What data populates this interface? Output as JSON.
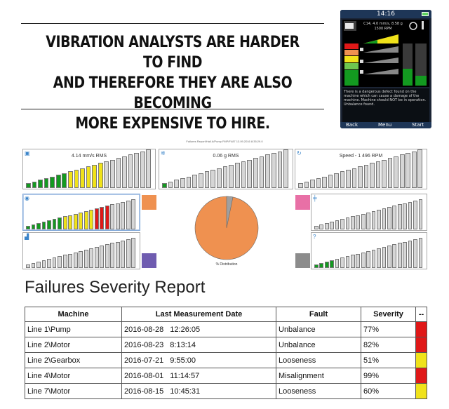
{
  "headline": {
    "lines": [
      "VIBRATION ANALYSTS ARE HARDER TO FIND",
      "AND THEREFORE THEY ARE ALSO BECOMING",
      "MORE EXPENSIVE TO HIRE."
    ]
  },
  "device": {
    "time": "14:16",
    "info_line1": "C14, 4.0 mm/s, 8.58 g",
    "info_line2": "1500 RPM",
    "message": "There is a dangerous defect found on the machine which can cause a damage of the machine. Machine should NOT be in operation. Unbalance found.",
    "softkeys": [
      "Back",
      "Menu",
      "Start"
    ]
  },
  "dashboard": {
    "title": "Failures Report/Hall A/Pump FMP/F487  13.09.2016 8:35:29.0",
    "pie_label": "% Distribution",
    "panels": [
      {
        "id": "velocity",
        "title": "4.14 mm/s RMS",
        "icon": "velocity-icon",
        "level": 0.64,
        "bars": 21
      },
      {
        "id": "acceleration",
        "title": "0.06 g RMS",
        "icon": "gear-icon",
        "level": 0.05,
        "bars": 21
      },
      {
        "id": "speed",
        "title": "Speed - 1 496 RPM",
        "icon": "speed-icon",
        "level": 0.0,
        "bars": 21
      },
      {
        "id": "unbalance",
        "title": "",
        "icon": "unbalance-icon",
        "level": 0.77,
        "bars": 21
      },
      {
        "id": "misalignment",
        "title": "",
        "icon": "misalignment-icon",
        "level": 0.0,
        "bars": 21
      },
      {
        "id": "looseness",
        "title": "",
        "icon": "looseness-icon",
        "level": 0.0,
        "bars": 21
      },
      {
        "id": "unknown",
        "title": "",
        "icon": "question-icon",
        "level": 0.2,
        "bars": 21
      }
    ],
    "colors": {
      "green": "#139a20",
      "yellow": "#f0e21a",
      "red": "#e01818",
      "grey": "#d6d6d6",
      "pie": "#ef9150",
      "pie_small": "#a0a0a0",
      "swatch_orange": "#ef9150",
      "swatch_pink": "#e870a6",
      "swatch_purple": "#6f5cb0",
      "swatch_grey": "#8c8c8c"
    }
  },
  "report": {
    "title": "Failures Severity Report",
    "columns": [
      "Machine",
      "Last Measurement Date",
      "Fault",
      "Severity",
      "--"
    ],
    "rows": [
      {
        "machine": "Line 1\\Pump",
        "date": "2016-08-28",
        "time": "12:26:05",
        "fault": "Unbalance",
        "severity": "77%",
        "color": "#e01818"
      },
      {
        "machine": "Line 2\\Motor",
        "date": "2016-08-23",
        "time": "8:13:14",
        "fault": "Unbalance",
        "severity": "82%",
        "color": "#e01818"
      },
      {
        "machine": "Line 2\\Gearbox",
        "date": "2016-07-21",
        "time": "9:55:00",
        "fault": "Looseness",
        "severity": "51%",
        "color": "#f0e21a"
      },
      {
        "machine": "Line 4\\Motor",
        "date": "2016-08-01",
        "time": "11:14:57",
        "fault": "Misalignment",
        "severity": "99%",
        "color": "#e01818"
      },
      {
        "machine": "Line 7\\Motor",
        "date": "2016-08-15",
        "time": "10:45:31",
        "fault": "Looseness",
        "severity": "60%",
        "color": "#f0e21a"
      }
    ]
  }
}
